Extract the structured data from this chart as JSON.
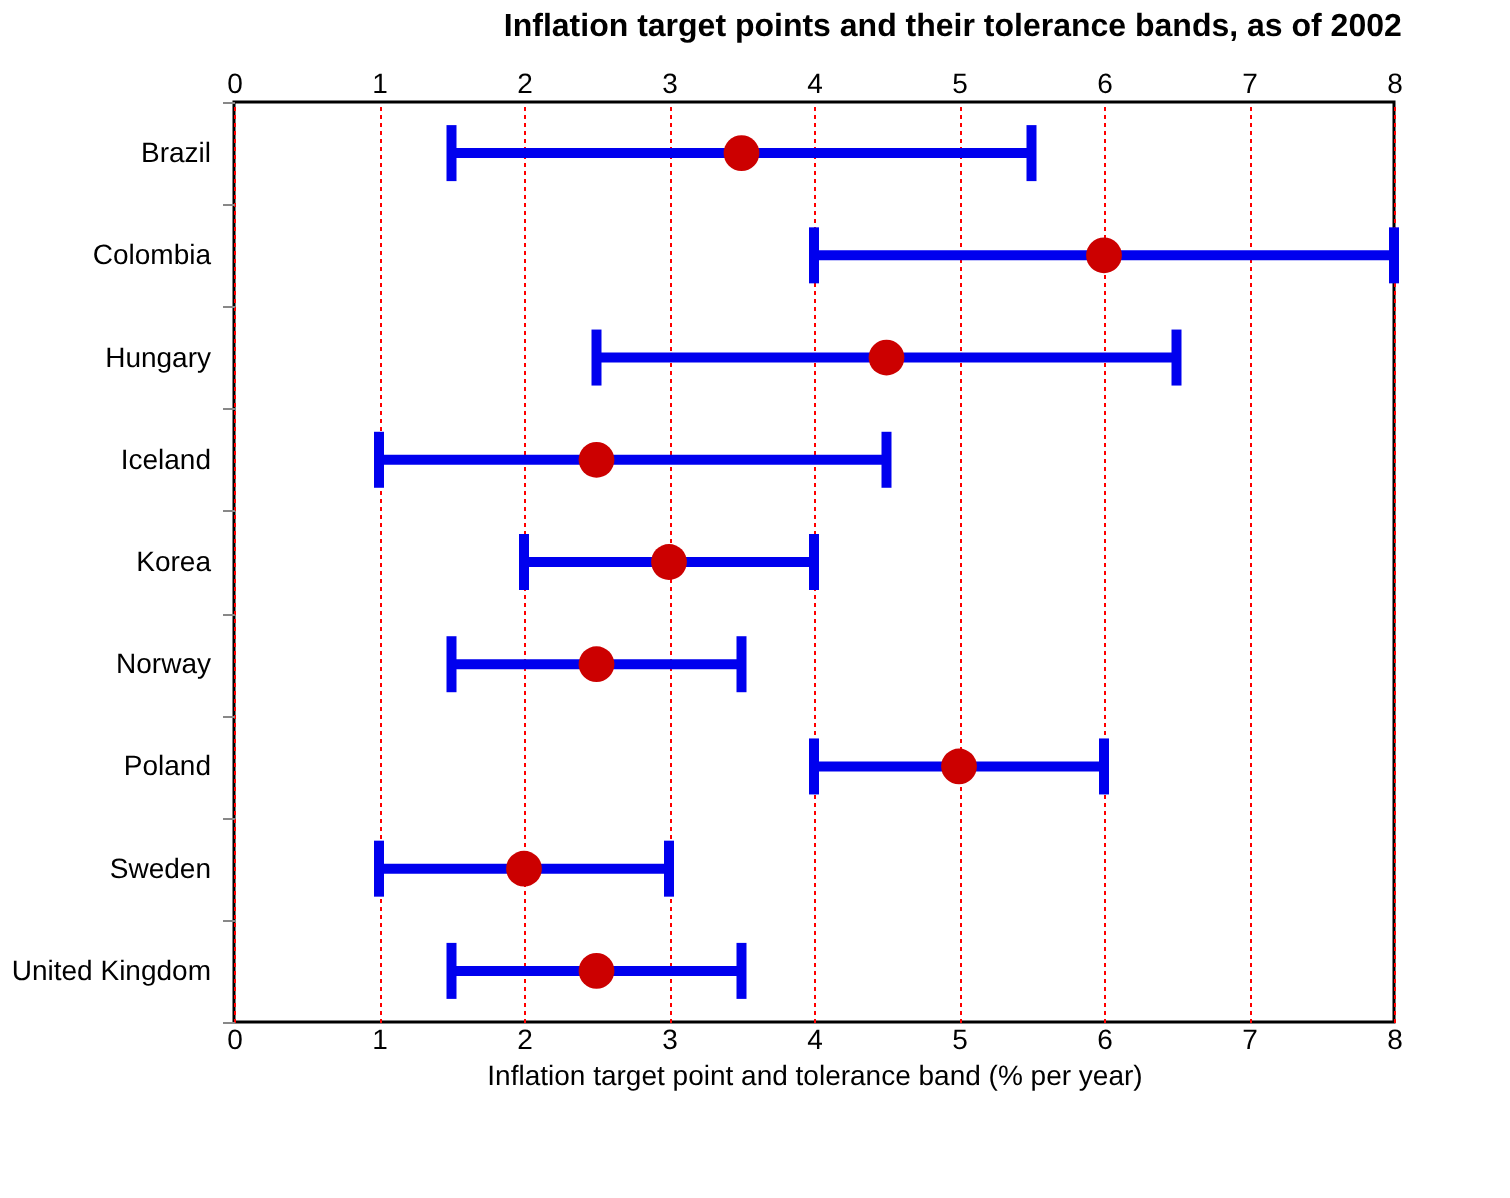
{
  "chart_data": {
    "type": "scatter",
    "orientation": "horizontal",
    "title": "Inflation target points and their tolerance bands, as of 2002",
    "xlabel": "Inflation target point and tolerance band (% per year)",
    "categories": [
      "Brazil",
      "Colombia",
      "Hungary",
      "Iceland",
      "Korea",
      "Norway",
      "Poland",
      "Sweden",
      "United Kingdom"
    ],
    "series": [
      {
        "color": "#cc0000",
        "values": [
          3.5,
          6,
          4.5,
          2.5,
          3,
          2.5,
          5,
          2,
          2.5
        ],
        "errors": [
          [
            1.5,
            5.5
          ],
          [
            4,
            8
          ],
          [
            2.5,
            6.5
          ],
          [
            1,
            4.5
          ],
          [
            2,
            4
          ],
          [
            1.5,
            3.5
          ],
          [
            4,
            6
          ],
          [
            1,
            3
          ],
          [
            1.5,
            3.5
          ]
        ]
      }
    ],
    "marker": "circle",
    "xlim": [
      0,
      8
    ],
    "xticks": [
      0,
      1,
      2,
      3,
      4,
      5,
      6,
      7,
      8
    ],
    "x2lim": [
      0,
      8
    ],
    "x2ticks": [
      0,
      1,
      2,
      3,
      4,
      5,
      6,
      7,
      8
    ],
    "grid": "x"
  }
}
